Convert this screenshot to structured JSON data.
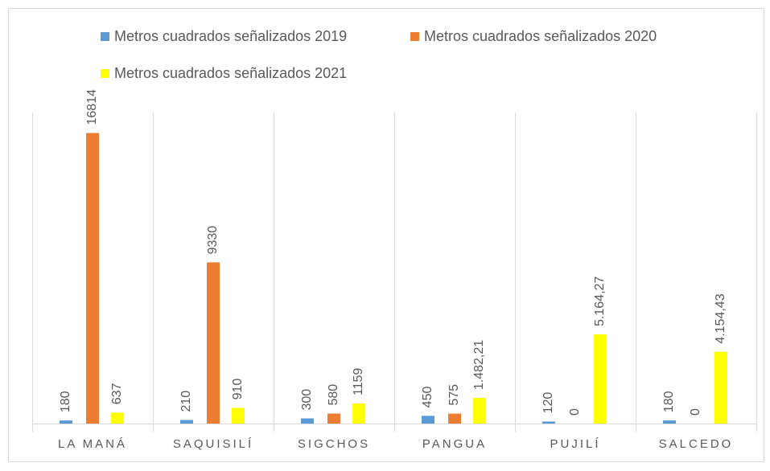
{
  "chart_data": {
    "type": "bar",
    "categories": [
      "LA MANÁ",
      "SAQUISILÍ",
      "SIGCHOS",
      "PANGUA",
      "PUJILÍ",
      "SALCEDO"
    ],
    "series": [
      {
        "name": "Metros cuadrados señalizados 2019",
        "color": "#5b9bd5",
        "values": [
          180,
          210,
          300,
          450,
          120,
          180
        ]
      },
      {
        "name": "Metros cuadrados señalizados 2020",
        "color": "#ed7d31",
        "values": [
          16814,
          9330,
          580,
          575,
          0,
          0
        ]
      },
      {
        "name": "Metros cuadrados señalizados 2021",
        "color": "#ffff00",
        "values": [
          637,
          910,
          1159,
          1482.21,
          5164.27,
          4154.43
        ],
        "value_labels": [
          "637",
          "910",
          "1159",
          "1.482,21",
          "5.164,27",
          "4.154,43"
        ]
      }
    ],
    "ylim": [
      0,
      18000
    ],
    "legend": "top"
  }
}
